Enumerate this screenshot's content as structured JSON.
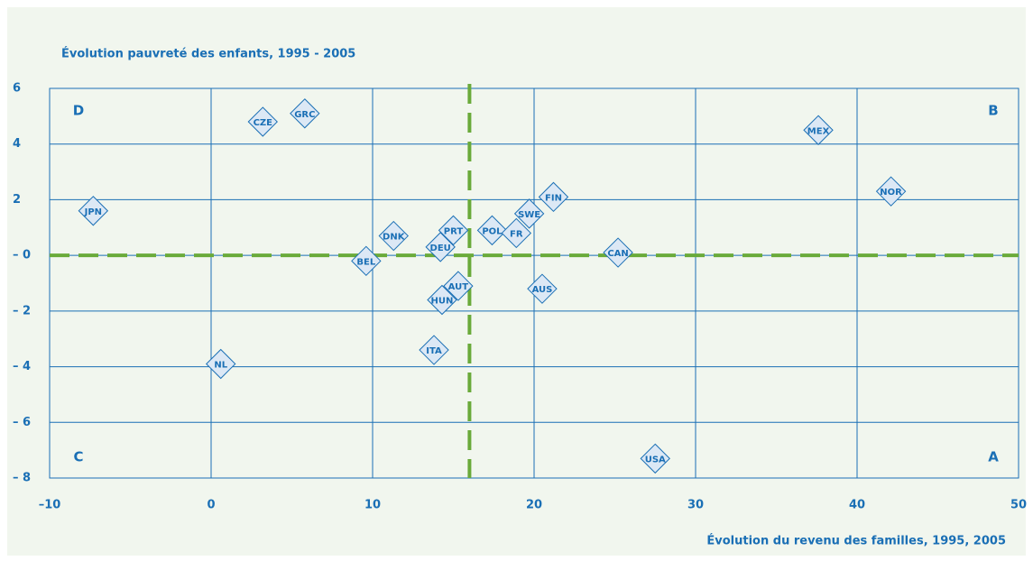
{
  "chart_data": {
    "type": "scatter",
    "title": "Évolution pauvreté des enfants, 1995 - 2005",
    "x_label": "Évolution du revenu des familles, 1995, 2005",
    "annotations": [
      "D",
      "B",
      "C",
      "A"
    ],
    "series": [
      {
        "color": "#1a6fb5",
        "names": [
          "JPN",
          "CZE",
          "GRC",
          "NL",
          "BEL",
          "DNK",
          "DEU",
          "PRT",
          "AUT",
          "HUN",
          "ITA",
          "POL",
          "FR",
          "SWE",
          "FIN",
          "AUS",
          "CAN",
          "USA",
          "MEX",
          "NOR"
        ],
        "x": [
          -7.3,
          3.2,
          5.8,
          0.6,
          9.6,
          11.3,
          14.2,
          15.0,
          15.3,
          14.3,
          13.8,
          17.4,
          18.9,
          19.7,
          21.2,
          20.5,
          25.2,
          27.5,
          37.6,
          42.1
        ],
        "values": [
          1.6,
          4.8,
          5.1,
          -3.9,
          -0.2,
          0.7,
          0.3,
          0.9,
          -1.1,
          -1.6,
          -3.4,
          0.9,
          0.8,
          1.5,
          2.1,
          -1.2,
          0.1,
          -7.3,
          4.5,
          2.3
        ]
      }
    ],
    "reference_x": 16,
    "reference_y": 0,
    "reference_color": "#6aaa3a",
    "xlim": [
      -10,
      50
    ],
    "xticks": [
      {
        "value": -10,
        "label": "–10"
      },
      0,
      10,
      20,
      30,
      40,
      50
    ],
    "ylim": [
      -8,
      6
    ],
    "yticks": [
      {
        "value": -8,
        "label": "– 8"
      },
      {
        "value": -6,
        "label": "– 6"
      },
      {
        "value": -4,
        "label": "– 4"
      },
      {
        "value": -2,
        "label": "– 2"
      },
      {
        "value": 0,
        "label": "– 0"
      },
      2,
      4,
      6
    ],
    "grid": true
  }
}
